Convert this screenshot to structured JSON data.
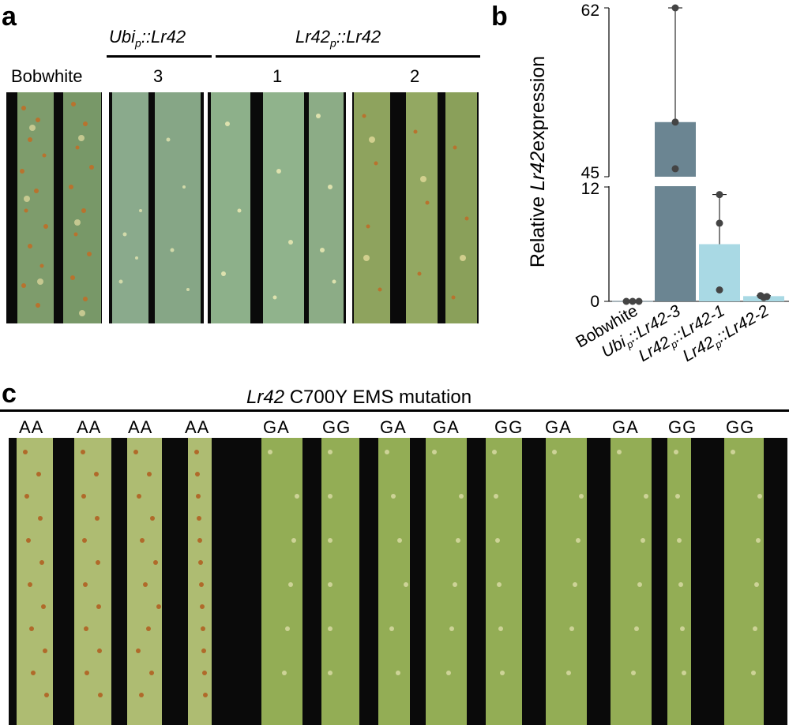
{
  "panel_a": {
    "letter": "a",
    "header_ubi": "Ubi",
    "header_ubi_sub": "p",
    "header_ubi_rest": "::Lr42",
    "header_lr42": "Lr42",
    "header_lr42_sub": "p",
    "header_lr42_rest": "::Lr42",
    "labels": [
      "Bobwhite",
      "3",
      "1",
      "2"
    ],
    "leaf_colors": {
      "bobwhite": "#7a9a6a",
      "ubi3": "#8aa98a",
      "lr1": "#8fb08a",
      "lr2": "#8ea35e"
    }
  },
  "panel_b": {
    "letter": "b",
    "ylabel_pre": "Relative ",
    "ylabel_gene": "Lr42",
    "ylabel_post": "expression",
    "ticks_upper": [
      "62",
      "45"
    ],
    "ticks_lower": [
      "12",
      "0"
    ],
    "categories": [
      {
        "name": "Bobwhite",
        "pre": "Bobwhite",
        "sub": "",
        "post": ""
      },
      {
        "name": "Ubip::Lr42-3",
        "pre": "Ubi",
        "sub": "p",
        "post": "::Lr42-3"
      },
      {
        "name": "Lr42p::Lr42-1",
        "pre": "Lr42",
        "sub": "p",
        "post": "::Lr42-1"
      },
      {
        "name": "Lr42p::Lr42-2",
        "pre": "Lr42",
        "sub": "p",
        "post": "::Lr42-2"
      }
    ]
  },
  "chart_data": {
    "type": "bar",
    "categories": [
      "Bobwhite",
      "Ubip::Lr42-3",
      "Lr42p::Lr42-1",
      "Lr42p::Lr42-2"
    ],
    "values": [
      0.05,
      50.5,
      6.0,
      0.55
    ],
    "points": [
      [
        0,
        0,
        0
      ],
      [
        62,
        50.5,
        45.8
      ],
      [
        11.2,
        8.2,
        1.2
      ],
      [
        0.6,
        0.4,
        0.5
      ]
    ],
    "error_max": [
      0.05,
      62,
      11.2,
      0.6
    ],
    "ylabel": "Relative Lr42 expression",
    "axis_break": {
      "lower": [
        0,
        12
      ],
      "upper": [
        45,
        62
      ]
    },
    "colors": [
      "#6b8592",
      "#6b8592",
      "#a9d9e4",
      "#a9d9e4"
    ]
  },
  "panel_c": {
    "letter": "c",
    "title_gene": "Lr42",
    "title_rest": " C700Y EMS mutation",
    "genotypes": [
      "AA",
      "AA",
      "AA",
      "AA",
      "GA",
      "GG",
      "GA",
      "GA",
      "GG",
      "GA",
      "GA",
      "GG",
      "GG"
    ],
    "leaf_colors": {
      "susceptible": "#aebc72",
      "resistant": "#93ad55"
    }
  }
}
